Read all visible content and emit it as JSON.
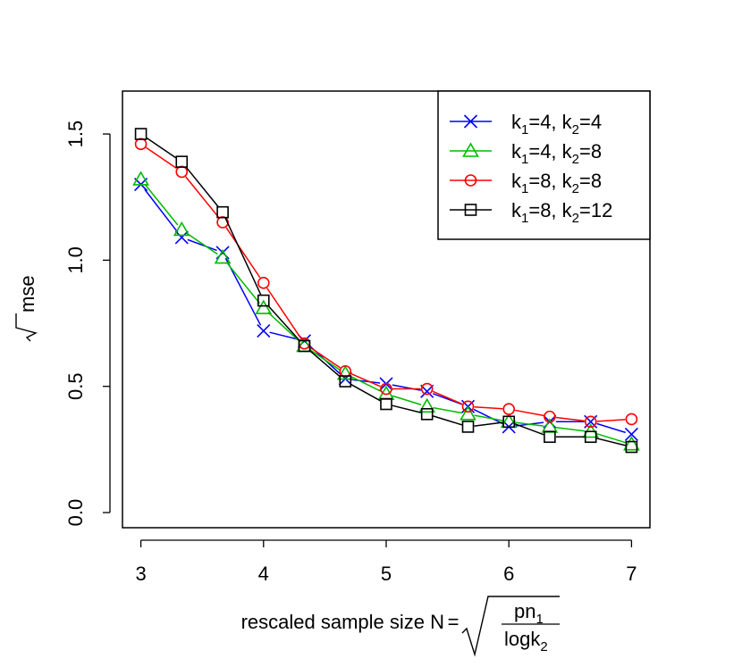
{
  "chart_data": {
    "type": "line",
    "x": [
      3.0,
      3.333,
      3.667,
      4.0,
      4.333,
      4.667,
      5.0,
      5.333,
      5.667,
      6.0,
      6.333,
      6.667,
      7.0
    ],
    "series": [
      {
        "name": "k1=4, k2=4",
        "color": "#0000ff",
        "marker": "x",
        "values": [
          1.3,
          1.09,
          1.03,
          0.72,
          0.68,
          0.53,
          0.51,
          0.48,
          0.42,
          0.34,
          0.36,
          0.36,
          0.31
        ]
      },
      {
        "name": "k1=4, k2=8",
        "color": "#00bb00",
        "marker": "triangle",
        "values": [
          1.32,
          1.12,
          1.01,
          0.81,
          0.66,
          0.55,
          0.47,
          0.42,
          0.39,
          0.36,
          0.34,
          0.32,
          0.27
        ]
      },
      {
        "name": "k1=8, k2=8",
        "color": "#ff0000",
        "marker": "circle",
        "values": [
          1.46,
          1.35,
          1.15,
          0.91,
          0.67,
          0.56,
          0.49,
          0.49,
          0.42,
          0.41,
          0.38,
          0.36,
          0.37
        ]
      },
      {
        "name": "k1=8, k2=12",
        "color": "#000000",
        "marker": "square",
        "values": [
          1.5,
          1.39,
          1.19,
          0.84,
          0.66,
          0.52,
          0.43,
          0.39,
          0.34,
          0.36,
          0.3,
          0.3,
          0.26
        ]
      }
    ],
    "legend": [
      {
        "k1_label": "k",
        "k1_sub": "1",
        "k1_val": "=4, ",
        "k2_label": "k",
        "k2_sub": "2",
        "k2_val": "=4"
      },
      {
        "k1_label": "k",
        "k1_sub": "1",
        "k1_val": "=4, ",
        "k2_label": "k",
        "k2_sub": "2",
        "k2_val": "=8"
      },
      {
        "k1_label": "k",
        "k1_sub": "1",
        "k1_val": "=8, ",
        "k2_label": "k",
        "k2_sub": "2",
        "k2_val": "=8"
      },
      {
        "k1_label": "k",
        "k1_sub": "1",
        "k1_val": "=8, ",
        "k2_label": "k",
        "k2_sub": "2",
        "k2_val": "=12"
      }
    ],
    "legend_position": "top-right",
    "xlim": [
      2.85,
      7.15
    ],
    "ylim": [
      -0.06,
      1.67
    ],
    "xticks": [
      3,
      4,
      5,
      6,
      7
    ],
    "yticks": [
      0.0,
      0.5,
      1.0,
      1.5
    ],
    "ytick_labels": [
      "0.0",
      "0.5",
      "1.0",
      "1.5"
    ],
    "ylabel": {
      "radical": "√",
      "text": "mse"
    },
    "xlabel": {
      "prefix": "rescaled sample size N",
      "equals": "=",
      "numerator": "pn",
      "numerator_sub": "1",
      "denominator": "logk",
      "denominator_sub": "2"
    },
    "grid": false
  }
}
